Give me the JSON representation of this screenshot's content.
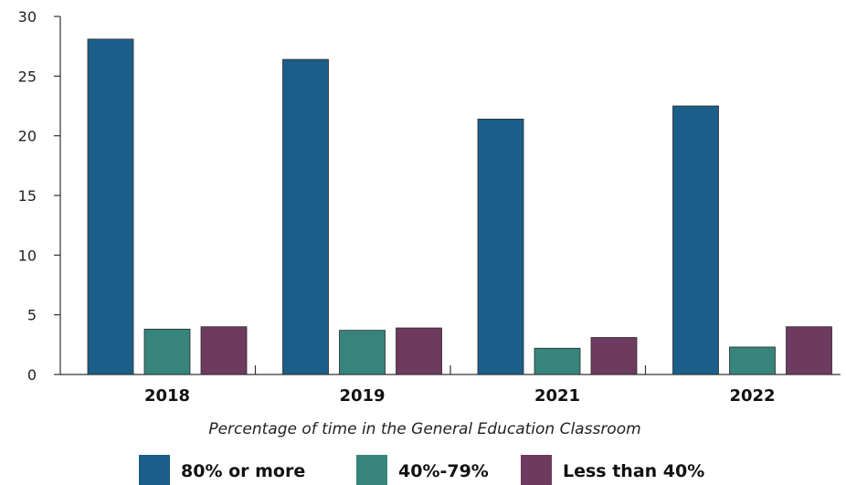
{
  "chart_data": {
    "type": "bar",
    "categories": [
      "2018",
      "2019",
      "2021",
      "2022"
    ],
    "series": [
      {
        "name": "80% or more",
        "values": [
          28.1,
          26.4,
          21.4,
          22.5
        ],
        "color": "#1b5e89"
      },
      {
        "name": "40%-79%",
        "values": [
          3.8,
          3.7,
          2.2,
          2.3
        ],
        "color": "#36847b"
      },
      {
        "name": "Less than 40%",
        "values": [
          4.0,
          3.9,
          3.1,
          4.0
        ],
        "color": "#6e3a5f"
      }
    ],
    "xlabel": "Percentage of time in the General Education Classroom",
    "ylabel": "",
    "ylim": [
      0,
      30
    ],
    "yticks": [
      0,
      5,
      10,
      15,
      20,
      25,
      30
    ],
    "grid": false,
    "legend_position": "bottom"
  }
}
